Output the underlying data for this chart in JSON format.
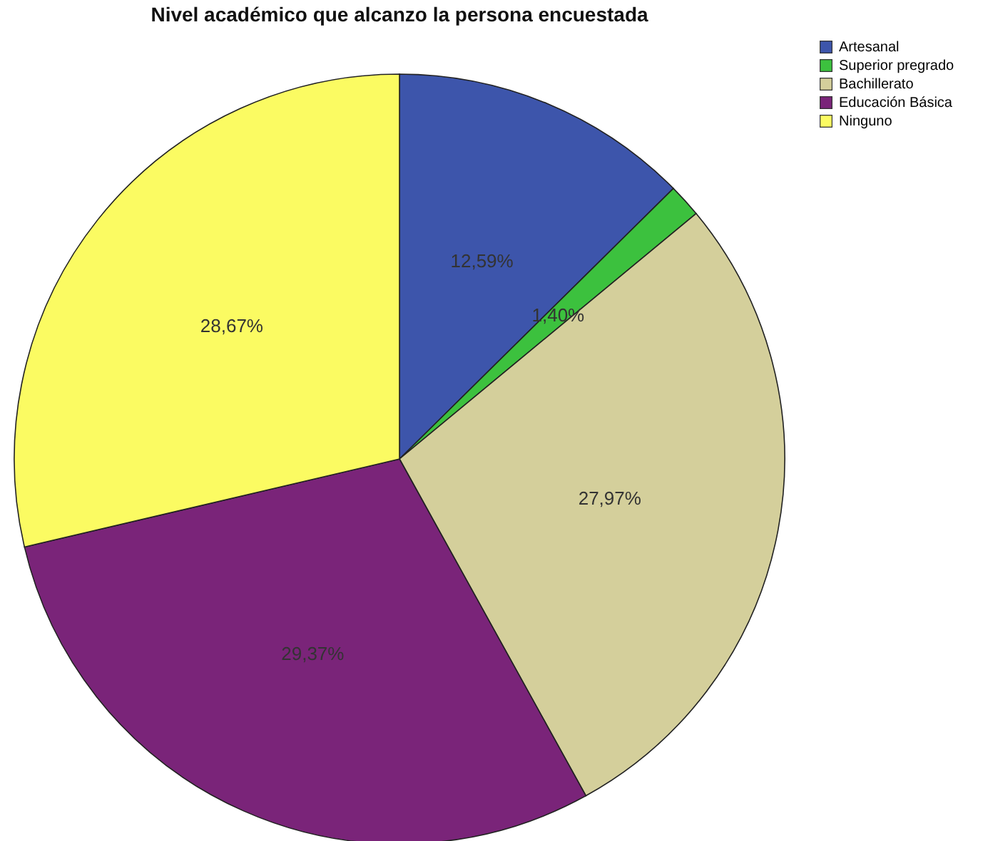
{
  "chart_data": {
    "type": "pie",
    "title": "Nivel académico que alcanzo la persona encuestada",
    "categories": [
      "Artesanal",
      "Superior pregrado",
      "Bachillerato",
      "Educación Básica",
      "Ninguno"
    ],
    "values": [
      12.59,
      1.4,
      27.97,
      29.37,
      28.67
    ],
    "colors": [
      "#3d55ab",
      "#3cc13e",
      "#d4cf9b",
      "#7a2479",
      "#fbfb62"
    ],
    "value_labels": [
      "12,59%",
      "1,40%",
      "27,97%",
      "29,37%",
      "28,67%"
    ],
    "legend": "top right"
  }
}
